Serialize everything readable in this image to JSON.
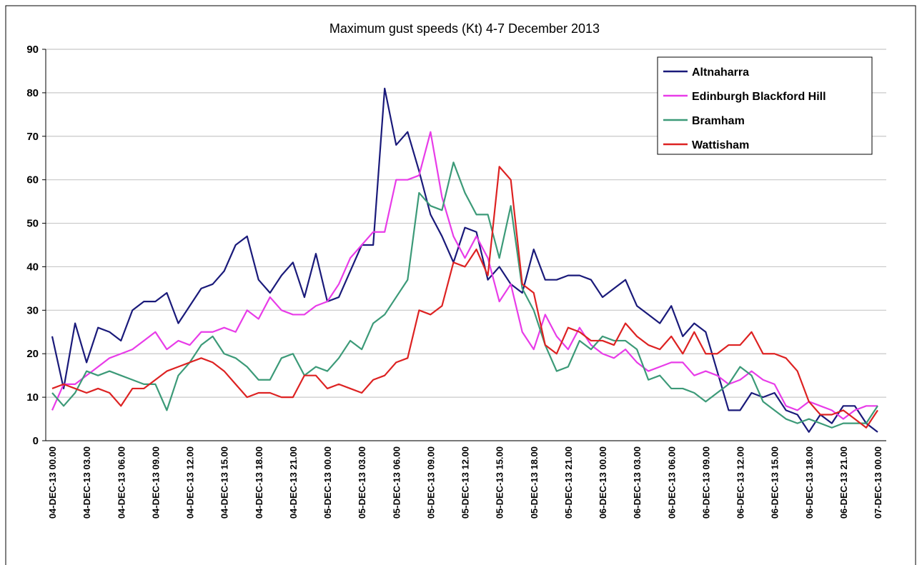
{
  "chart_data": {
    "type": "line",
    "title": "Maximum gust speeds (Kt) 4-7 December 2013",
    "categories": [
      "04-DEC-13 00.00",
      null,
      null,
      "04-DEC-13 03.00",
      null,
      null,
      "04-DEC-13 06.00",
      null,
      null,
      "04-DEC-13 09.00",
      null,
      null,
      "04-DEC-13 12.00",
      null,
      null,
      "04-DEC-13 15.00",
      null,
      null,
      "04-DEC-13 18.00",
      null,
      null,
      "04-DEC-13 21.00",
      null,
      null,
      "05-DEC-13 00.00",
      null,
      null,
      "05-DEC-13 03.00",
      null,
      null,
      "05-DEC-13 06.00",
      null,
      null,
      "05-DEC-13 09.00",
      null,
      null,
      "05-DEC-13 12.00",
      null,
      null,
      "05-DEC-13 15.00",
      null,
      null,
      "05-DEC-13 18.00",
      null,
      null,
      "05-DEC-13 21.00",
      null,
      null,
      "06-DEC-13 00.00",
      null,
      null,
      "06-DEC-13 03.00",
      null,
      null,
      "06-DEC-13 06.00",
      null,
      null,
      "06-DEC-13 09.00",
      null,
      null,
      "06-DEC-13 12.00",
      null,
      null,
      "06-DEC-13 15.00",
      null,
      null,
      "06-DEC-13 18.00",
      null,
      null,
      "06-DEC-13 21.00",
      null,
      null,
      "07-DEC-13 00.00"
    ],
    "series": [
      {
        "name": "Altnaharra",
        "color": "#1a1a7a",
        "values": [
          24,
          12,
          27,
          18,
          26,
          25,
          23,
          30,
          32,
          32,
          34,
          27,
          31,
          35,
          36,
          39,
          45,
          47,
          37,
          34,
          38,
          41,
          33,
          43,
          32,
          33,
          39,
          45,
          45,
          81,
          68,
          71,
          62,
          52,
          47,
          41,
          49,
          48,
          37,
          40,
          36,
          34,
          44,
          37,
          37,
          38,
          38,
          37,
          33,
          35,
          37,
          31,
          29,
          27,
          31,
          24,
          27,
          25,
          16,
          7,
          7,
          11,
          10,
          11,
          7,
          6,
          2,
          6,
          4,
          8,
          8,
          4,
          2
        ]
      },
      {
        "name": "Edinburgh Blackford Hill",
        "color": "#e83ce8",
        "values": [
          7,
          13,
          13,
          15,
          17,
          19,
          20,
          21,
          23,
          25,
          21,
          23,
          22,
          25,
          25,
          26,
          25,
          30,
          28,
          33,
          30,
          29,
          29,
          31,
          32,
          36,
          42,
          45,
          48,
          48,
          60,
          60,
          61,
          71,
          56,
          47,
          42,
          47,
          42,
          32,
          36,
          25,
          21,
          29,
          24,
          21,
          26,
          22,
          20,
          19,
          21,
          18,
          16,
          17,
          18,
          18,
          15,
          16,
          15,
          13,
          14,
          16,
          14,
          13,
          8,
          7,
          9,
          8,
          7,
          5,
          7,
          8,
          8
        ]
      },
      {
        "name": "Bramham",
        "color": "#3c9a78",
        "values": [
          11,
          8,
          11,
          16,
          15,
          16,
          15,
          14,
          13,
          13,
          7,
          15,
          18,
          22,
          24,
          20,
          19,
          17,
          14,
          14,
          19,
          20,
          15,
          17,
          16,
          19,
          23,
          21,
          27,
          29,
          33,
          37,
          57,
          54,
          53,
          64,
          57,
          52,
          52,
          42,
          54,
          35,
          30,
          22,
          16,
          17,
          23,
          21,
          24,
          23,
          23,
          21,
          14,
          15,
          12,
          12,
          11,
          9,
          11,
          13,
          17,
          15,
          9,
          7,
          5,
          4,
          5,
          4,
          3,
          4,
          4,
          4,
          8
        ]
      },
      {
        "name": "Wattisham",
        "color": "#dd2222",
        "values": [
          12,
          13,
          12,
          11,
          12,
          11,
          8,
          12,
          12,
          14,
          16,
          17,
          18,
          19,
          18,
          16,
          13,
          10,
          11,
          11,
          10,
          10,
          15,
          15,
          12,
          13,
          12,
          11,
          14,
          15,
          18,
          19,
          30,
          29,
          31,
          41,
          40,
          44,
          38,
          63,
          60,
          36,
          34,
          22,
          20,
          26,
          25,
          23,
          23,
          22,
          27,
          24,
          22,
          21,
          24,
          20,
          25,
          20,
          20,
          22,
          22,
          25,
          20,
          20,
          19,
          16,
          9,
          6,
          6,
          7,
          5,
          3,
          7
        ]
      }
    ],
    "ylim": [
      0,
      90
    ],
    "yticks": [
      0,
      10,
      20,
      30,
      40,
      50,
      60,
      70,
      80,
      90
    ],
    "grid": true,
    "legend": "upper right"
  }
}
